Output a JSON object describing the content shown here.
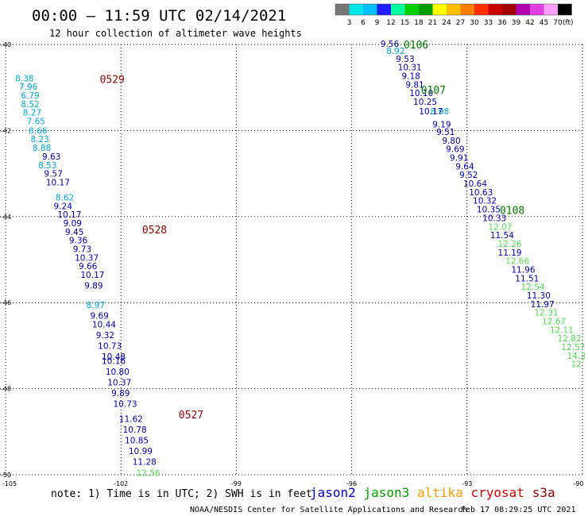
{
  "header": {
    "title": "00:00 – 11:59 UTC 02/14/2021",
    "subtitle": "12 hour collection of altimeter wave heights"
  },
  "colorbar": {
    "unit": "(ft)",
    "colors": [
      "#777777",
      "#00e5e5",
      "#00bfff",
      "#1e1eff",
      "#00ffa0",
      "#00d000",
      "#00a000",
      "#ffff00",
      "#ffbf00",
      "#ff7f00",
      "#ff3000",
      "#c80000",
      "#a00000",
      "#b000b0",
      "#e040e0",
      "#ff9fff",
      "#000000"
    ],
    "labels": [
      "3",
      "6",
      "9",
      "12",
      "15",
      "18",
      "21",
      "24",
      "27",
      "30",
      "33",
      "36",
      "39",
      "42",
      "45",
      "70"
    ]
  },
  "chart_data": {
    "type": "scatter",
    "x_axis": {
      "ticks": [
        "-105",
        "-102",
        "-99",
        "-96",
        "-93",
        "-90"
      ],
      "range": [
        -105,
        -90
      ]
    },
    "y_axis": {
      "ticks": [
        "-40",
        "-42",
        "-44",
        "-46",
        "-48",
        "-50"
      ],
      "range": [
        -50,
        -40
      ]
    },
    "grid": true,
    "orbits": [
      {
        "label": "0529",
        "color": "#8b0000",
        "lon": -102.55,
        "lat": -40.8
      },
      {
        "label": "0528",
        "color": "#8b0000",
        "lon": -101.45,
        "lat": -44.3
      },
      {
        "label": "0527",
        "color": "#8b0000",
        "lon": -100.5,
        "lat": -48.6
      },
      {
        "label": "0106",
        "color": "#007a00",
        "lon": -94.65,
        "lat": -40.0
      },
      {
        "label": "0107",
        "color": "#007a00",
        "lon": -94.2,
        "lat": -41.05
      },
      {
        "label": "0108",
        "color": "#007a00",
        "lon": -92.15,
        "lat": -43.85
      }
    ],
    "series": [
      {
        "name": "cryosat",
        "color": "#00aadd",
        "points": [
          {
            "lon": -104.75,
            "lat": -40.78,
            "v": "8.38"
          },
          {
            "lon": -104.65,
            "lat": -40.98,
            "v": "7.96"
          },
          {
            "lon": -104.6,
            "lat": -41.18,
            "v": "6.79"
          },
          {
            "lon": -104.6,
            "lat": -41.38,
            "v": "8.52"
          },
          {
            "lon": -104.55,
            "lat": -41.58,
            "v": "8.27"
          },
          {
            "lon": -104.45,
            "lat": -41.78,
            "v": "7.65"
          },
          {
            "lon": -104.4,
            "lat": -42.0,
            "v": "8.66"
          },
          {
            "lon": -104.35,
            "lat": -42.2,
            "v": "8.23"
          },
          {
            "lon": -104.3,
            "lat": -42.4,
            "v": "8.88"
          },
          {
            "lon": -104.15,
            "lat": -42.8,
            "v": "8.53"
          },
          {
            "lon": -103.7,
            "lat": -43.55,
            "v": "8.62"
          },
          {
            "lon": -102.9,
            "lat": -46.05,
            "v": "8.97"
          }
        ]
      },
      {
        "name": "jason2",
        "color": "#0000b0",
        "points": [
          {
            "lon": -104.05,
            "lat": -42.6,
            "v": "9.63"
          },
          {
            "lon": -104.0,
            "lat": -43.0,
            "v": "9.57"
          },
          {
            "lon": -103.95,
            "lat": -43.2,
            "v": "10.17"
          },
          {
            "lon": -103.75,
            "lat": -43.75,
            "v": "9.24"
          },
          {
            "lon": -103.65,
            "lat": -43.95,
            "v": "10.17"
          },
          {
            "lon": -103.5,
            "lat": -44.15,
            "v": "9.09"
          },
          {
            "lon": -103.45,
            "lat": -44.35,
            "v": "9.45"
          },
          {
            "lon": -103.35,
            "lat": -44.55,
            "v": "9.36"
          },
          {
            "lon": -103.25,
            "lat": -44.75,
            "v": "9.73"
          },
          {
            "lon": -103.2,
            "lat": -44.95,
            "v": "10.37"
          },
          {
            "lon": -103.1,
            "lat": -45.15,
            "v": "9.66"
          },
          {
            "lon": -103.05,
            "lat": -45.35,
            "v": "10.17"
          },
          {
            "lon": -102.95,
            "lat": -45.6,
            "v": "9.89"
          },
          {
            "lon": -102.8,
            "lat": -46.3,
            "v": "9.69"
          },
          {
            "lon": -102.75,
            "lat": -46.5,
            "v": "10.44"
          },
          {
            "lon": -102.65,
            "lat": -46.75,
            "v": "9.32"
          },
          {
            "lon": -102.6,
            "lat": -47.0,
            "v": "10.73"
          },
          {
            "lon": -102.5,
            "lat": -47.25,
            "v": "10.48"
          },
          {
            "lon": -102.5,
            "lat": -47.35,
            "v": "10.16"
          },
          {
            "lon": -102.4,
            "lat": -47.6,
            "v": "10.80"
          },
          {
            "lon": -102.35,
            "lat": -47.85,
            "v": "10.37"
          },
          {
            "lon": -102.25,
            "lat": -48.1,
            "v": "9.89"
          },
          {
            "lon": -102.2,
            "lat": -48.35,
            "v": "10.73"
          },
          {
            "lon": -102.05,
            "lat": -48.7,
            "v": "11.62"
          },
          {
            "lon": -101.95,
            "lat": -48.95,
            "v": "10.78"
          },
          {
            "lon": -101.9,
            "lat": -49.2,
            "v": "10.85"
          },
          {
            "lon": -101.8,
            "lat": -49.45,
            "v": "10.99"
          },
          {
            "lon": -101.7,
            "lat": -49.7,
            "v": "11.28"
          }
        ]
      },
      {
        "name": "jason3",
        "color": "#55dd55",
        "points": [
          {
            "lon": -101.6,
            "lat": -49.95,
            "v": "12.56"
          }
        ]
      },
      {
        "name": "cryosat-east",
        "color": "#00aadd",
        "points": [
          {
            "lon": -95.1,
            "lat": -40.15,
            "v": "8.92"
          },
          {
            "lon": -93.95,
            "lat": -41.55,
            "v": "8.98"
          }
        ]
      },
      {
        "name": "jason2-east",
        "color": "#0000b0",
        "points": [
          {
            "lon": -95.25,
            "lat": -39.98,
            "v": "9.56"
          },
          {
            "lon": -94.85,
            "lat": -40.33,
            "v": "9.53"
          },
          {
            "lon": -94.8,
            "lat": -40.53,
            "v": "10.31"
          },
          {
            "lon": -94.7,
            "lat": -40.73,
            "v": "9.18"
          },
          {
            "lon": -94.6,
            "lat": -40.93,
            "v": "9.81"
          },
          {
            "lon": -94.5,
            "lat": -41.13,
            "v": "10.10"
          },
          {
            "lon": -94.4,
            "lat": -41.33,
            "v": "10.25"
          },
          {
            "lon": -94.25,
            "lat": -41.55,
            "v": "10.17"
          },
          {
            "lon": -93.9,
            "lat": -41.85,
            "v": "9.19"
          },
          {
            "lon": -93.8,
            "lat": -42.03,
            "v": "9.51"
          },
          {
            "lon": -93.65,
            "lat": -42.23,
            "v": "9.80"
          },
          {
            "lon": -93.55,
            "lat": -42.43,
            "v": "9.69"
          },
          {
            "lon": -93.45,
            "lat": -42.63,
            "v": "9.91"
          },
          {
            "lon": -93.3,
            "lat": -42.83,
            "v": "9.64"
          },
          {
            "lon": -93.2,
            "lat": -43.03,
            "v": "9.52"
          },
          {
            "lon": -93.1,
            "lat": -43.23,
            "v": "10.64"
          },
          {
            "lon": -92.95,
            "lat": -43.43,
            "v": "10.63"
          },
          {
            "lon": -92.85,
            "lat": -43.63,
            "v": "10.32"
          },
          {
            "lon": -92.75,
            "lat": -43.83,
            "v": "10.35"
          },
          {
            "lon": -92.6,
            "lat": -44.03,
            "v": "10.33"
          },
          {
            "lon": -92.4,
            "lat": -44.43,
            "v": "11.54"
          },
          {
            "lon": -92.2,
            "lat": -44.83,
            "v": "11.19"
          },
          {
            "lon": -91.85,
            "lat": -45.23,
            "v": "11.96"
          },
          {
            "lon": -91.75,
            "lat": -45.43,
            "v": "11.51"
          },
          {
            "lon": -91.45,
            "lat": -45.83,
            "v": "11.30"
          },
          {
            "lon": -91.35,
            "lat": -46.03,
            "v": "11.97"
          }
        ]
      },
      {
        "name": "jason3-east",
        "color": "#55dd55",
        "points": [
          {
            "lon": -92.45,
            "lat": -44.23,
            "v": "12.07"
          },
          {
            "lon": -92.2,
            "lat": -44.63,
            "v": "12.26"
          },
          {
            "lon": -92.0,
            "lat": -45.03,
            "v": "12.66"
          },
          {
            "lon": -91.6,
            "lat": -45.63,
            "v": "12.54"
          },
          {
            "lon": -91.25,
            "lat": -46.23,
            "v": "12.31"
          },
          {
            "lon": -91.05,
            "lat": -46.43,
            "v": "12.67"
          },
          {
            "lon": -90.85,
            "lat": -46.63,
            "v": "12.11"
          },
          {
            "lon": -90.65,
            "lat": -46.83,
            "v": "12.82"
          },
          {
            "lon": -90.55,
            "lat": -47.03,
            "v": "12.57"
          },
          {
            "lon": -90.4,
            "lat": -47.23,
            "v": "14.3"
          },
          {
            "lon": -90.3,
            "lat": -47.43,
            "v": "12"
          }
        ]
      }
    ]
  },
  "footer": {
    "note": "note: 1) Time is in UTC; 2) SWH is in feet",
    "credit": "NOAA/NESDIS Center for Satellite Applications and Research",
    "timestamp": "Feb 17 08:29:25 UTC 2021",
    "legend": [
      {
        "name": "jason2",
        "color": "#0000cc"
      },
      {
        "name": "jason3",
        "color": "#00a000"
      },
      {
        "name": "altika",
        "color": "#ff9900"
      },
      {
        "name": "cryosat",
        "color": "#dd0000"
      },
      {
        "name": "s3a",
        "color": "#8b0000"
      }
    ]
  }
}
